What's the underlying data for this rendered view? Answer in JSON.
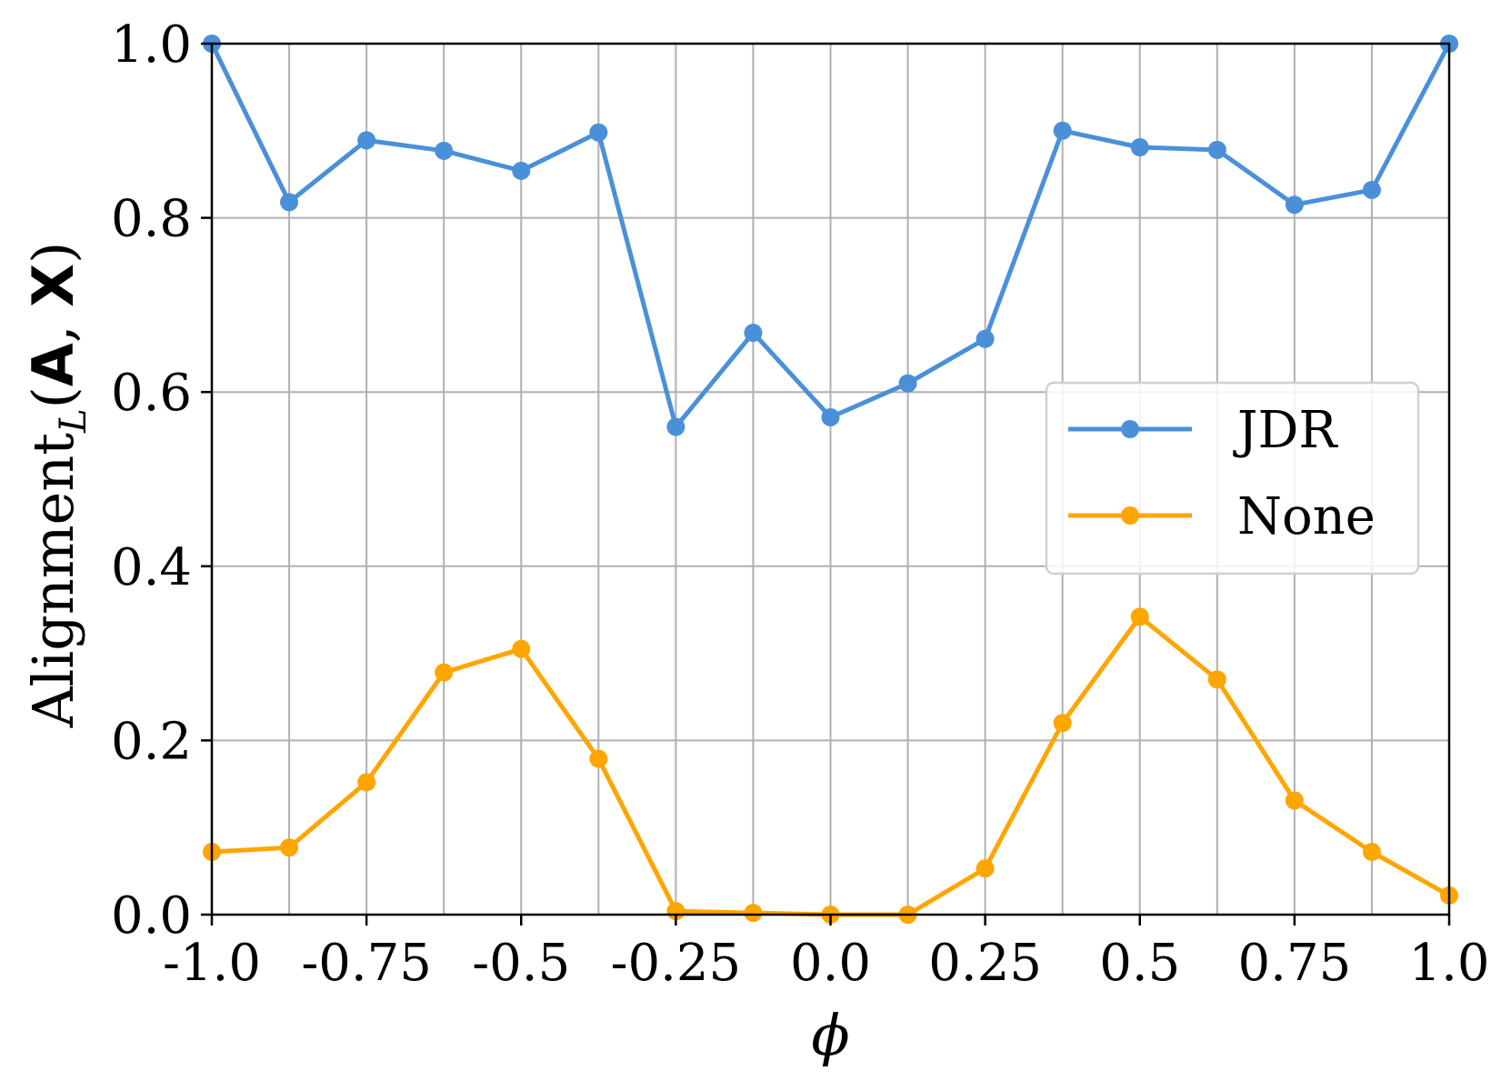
{
  "chart_data": {
    "type": "line",
    "xlabel": "ϕ",
    "ylabel": {
      "main": "Alignment",
      "subscript": "L",
      "args_open": "(",
      "arg1": "A",
      "sep": ", ",
      "arg2": "X",
      "args_close": ")"
    },
    "xlim": [
      -1.0,
      1.0
    ],
    "ylim": [
      0.0,
      1.0
    ],
    "x_ticks": [
      -1.0,
      -0.75,
      -0.5,
      -0.25,
      0.0,
      0.25,
      0.5,
      0.75,
      1.0
    ],
    "x_tick_labels": [
      "-1.0",
      "-0.75",
      "-0.5",
      "-0.25",
      "0.0",
      "0.25",
      "0.5",
      "0.75",
      "1.0"
    ],
    "y_ticks": [
      0.0,
      0.2,
      0.4,
      0.6,
      0.8,
      1.0
    ],
    "y_tick_labels": [
      "0.0",
      "0.2",
      "0.4",
      "0.6",
      "0.8",
      "1.0"
    ],
    "x_gridlines": [
      -1.0,
      -0.875,
      -0.75,
      -0.625,
      -0.5,
      -0.375,
      -0.25,
      -0.125,
      0.0,
      0.125,
      0.25,
      0.375,
      0.5,
      0.625,
      0.75,
      0.875,
      1.0
    ],
    "grid": true,
    "legend_position": "center-right",
    "x": [
      -1.0,
      -0.875,
      -0.75,
      -0.625,
      -0.5,
      -0.375,
      -0.25,
      -0.125,
      0.0,
      0.125,
      0.25,
      0.375,
      0.5,
      0.625,
      0.75,
      0.875,
      1.0
    ],
    "series": [
      {
        "name": "JDR",
        "color": "#4a90d9",
        "values": [
          1.0,
          0.818,
          0.889,
          0.877,
          0.854,
          0.898,
          0.56,
          0.668,
          0.571,
          0.61,
          0.661,
          0.9,
          0.881,
          0.878,
          0.815,
          0.832,
          1.0
        ]
      },
      {
        "name": "None",
        "color": "#ffa500",
        "values": [
          0.072,
          0.077,
          0.152,
          0.278,
          0.305,
          0.179,
          0.004,
          0.002,
          0.0,
          0.0,
          0.053,
          0.22,
          0.342,
          0.27,
          0.131,
          0.072,
          0.022
        ]
      }
    ]
  }
}
